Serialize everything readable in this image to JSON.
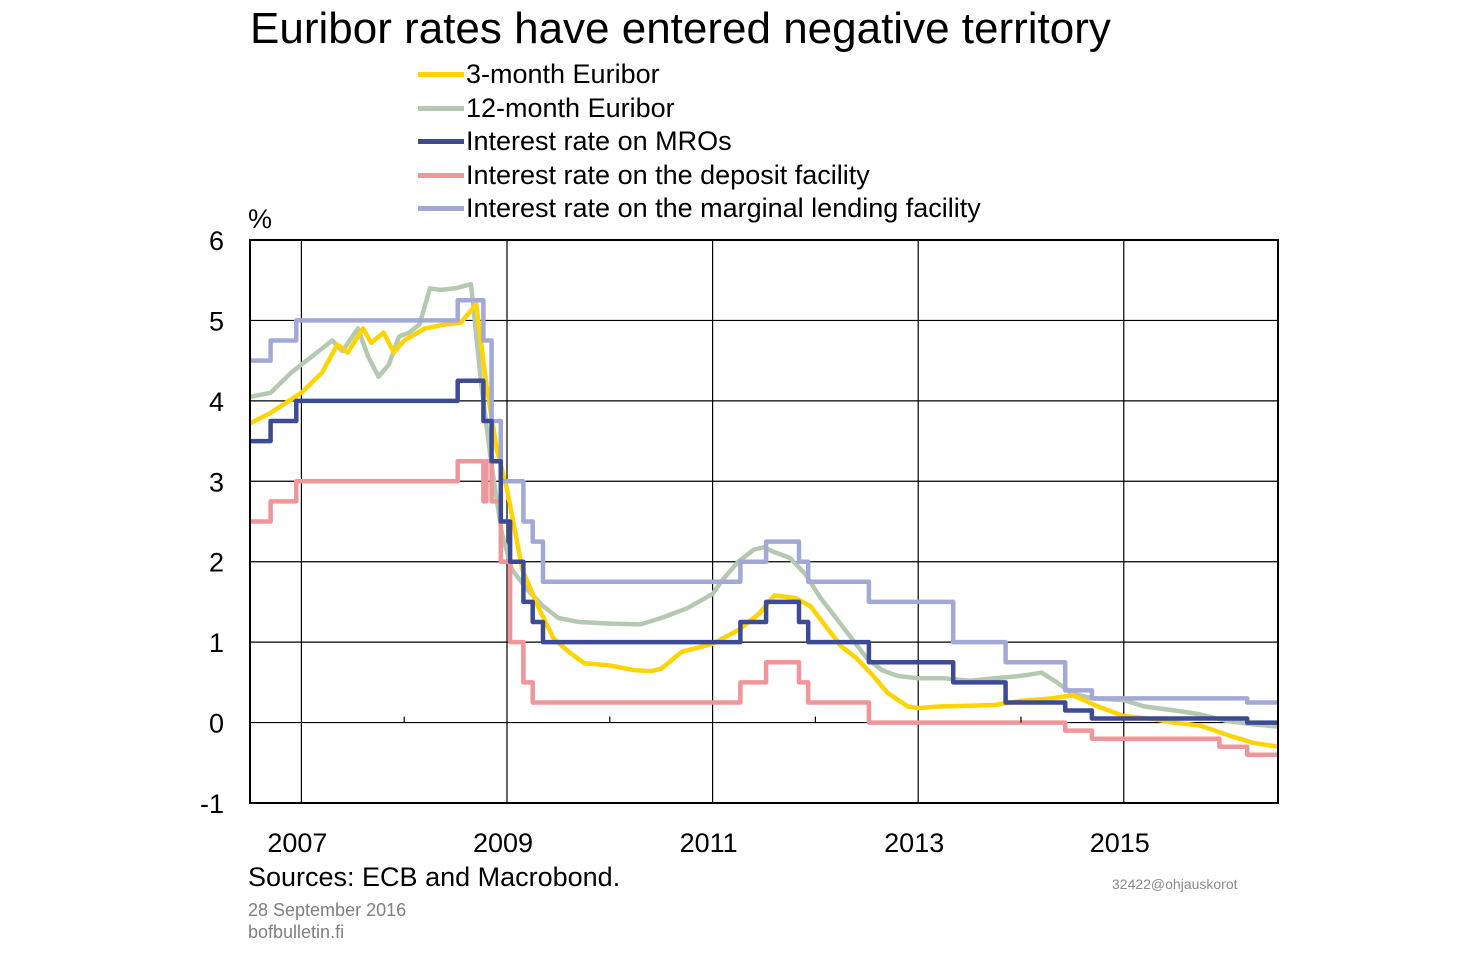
{
  "chart_data": {
    "type": "line",
    "title": "Euribor rates have entered negative territory",
    "ylabel": "%",
    "ylim": [
      -1,
      6
    ],
    "yticks": [
      "6",
      "5",
      "4",
      "3",
      "2",
      "1",
      "0",
      "-1"
    ],
    "xlim": [
      2006.5,
      2016.5
    ],
    "xticks": [
      "2007",
      "2009",
      "2011",
      "2013",
      "2015"
    ],
    "grid": true,
    "legend_position": "top",
    "series": [
      {
        "name": "3-month Euribor",
        "color": "#ffd400",
        "step": false,
        "x": [
          2006.5,
          2006.7,
          2007.0,
          2007.2,
          2007.35,
          2007.45,
          2007.6,
          2007.68,
          2007.8,
          2007.9,
          2008.0,
          2008.2,
          2008.4,
          2008.55,
          2008.7,
          2008.8,
          2008.9,
          2009.0,
          2009.15,
          2009.3,
          2009.45,
          2009.6,
          2009.75,
          2010.0,
          2010.25,
          2010.4,
          2010.5,
          2010.7,
          2011.0,
          2011.25,
          2011.45,
          2011.6,
          2011.8,
          2011.95,
          2012.1,
          2012.25,
          2012.4,
          2012.55,
          2012.7,
          2012.9,
          2013.0,
          2013.2,
          2013.5,
          2013.75,
          2014.0,
          2014.3,
          2014.5,
          2014.75,
          2015.0,
          2015.25,
          2015.5,
          2015.75,
          2016.0,
          2016.25,
          2016.5
        ],
        "y": [
          3.72,
          3.85,
          4.1,
          4.35,
          4.7,
          4.6,
          4.9,
          4.72,
          4.85,
          4.6,
          4.75,
          4.9,
          4.95,
          4.97,
          5.2,
          4.2,
          3.4,
          2.9,
          1.9,
          1.45,
          1.05,
          0.88,
          0.74,
          0.71,
          0.65,
          0.64,
          0.67,
          0.88,
          0.98,
          1.15,
          1.35,
          1.58,
          1.55,
          1.45,
          1.2,
          0.95,
          0.8,
          0.6,
          0.37,
          0.2,
          0.18,
          0.2,
          0.21,
          0.22,
          0.27,
          0.3,
          0.34,
          0.2,
          0.08,
          0.05,
          0.0,
          -0.04,
          -0.15,
          -0.25,
          -0.3
        ]
      },
      {
        "name": "12-month Euribor",
        "color": "#b5c9b0",
        "step": false,
        "x": [
          2006.5,
          2006.7,
          2006.9,
          2007.1,
          2007.3,
          2007.4,
          2007.55,
          2007.65,
          2007.75,
          2007.85,
          2007.95,
          2008.05,
          2008.15,
          2008.25,
          2008.35,
          2008.5,
          2008.65,
          2008.75,
          2008.85,
          2008.95,
          2009.05,
          2009.2,
          2009.35,
          2009.5,
          2009.7,
          2010.0,
          2010.3,
          2010.5,
          2010.75,
          2011.0,
          2011.1,
          2011.25,
          2011.4,
          2011.5,
          2011.6,
          2011.75,
          2011.9,
          2012.05,
          2012.2,
          2012.35,
          2012.5,
          2012.65,
          2012.8,
          2013.0,
          2013.25,
          2013.5,
          2013.75,
          2014.0,
          2014.2,
          2014.35,
          2014.5,
          2014.7,
          2015.0,
          2015.2,
          2015.5,
          2015.75,
          2016.0,
          2016.25,
          2016.5
        ],
        "y": [
          4.05,
          4.1,
          4.35,
          4.55,
          4.75,
          4.62,
          4.9,
          4.55,
          4.3,
          4.45,
          4.8,
          4.85,
          4.95,
          5.4,
          5.38,
          5.4,
          5.45,
          4.2,
          3.2,
          2.35,
          1.9,
          1.65,
          1.45,
          1.3,
          1.25,
          1.23,
          1.22,
          1.3,
          1.42,
          1.6,
          1.78,
          2.0,
          2.15,
          2.18,
          2.12,
          2.05,
          1.85,
          1.55,
          1.3,
          1.05,
          0.8,
          0.65,
          0.58,
          0.55,
          0.55,
          0.52,
          0.55,
          0.58,
          0.62,
          0.5,
          0.36,
          0.3,
          0.28,
          0.2,
          0.15,
          0.1,
          0.02,
          -0.02,
          -0.05
        ]
      },
      {
        "name": "Interest rate on MROs",
        "color": "#3d4b96",
        "step": true,
        "x": [
          2006.5,
          2006.7,
          2006.95,
          2007.44,
          2008.52,
          2008.77,
          2008.85,
          2008.94,
          2009.03,
          2009.16,
          2009.25,
          2009.35,
          2011.27,
          2011.52,
          2011.84,
          2011.93,
          2012.52,
          2013.34,
          2013.85,
          2014.43,
          2014.69,
          2016.2,
          2016.5
        ],
        "y": [
          3.5,
          3.75,
          4.0,
          4.0,
          4.25,
          3.75,
          3.25,
          2.5,
          2.0,
          1.5,
          1.25,
          1.0,
          1.25,
          1.5,
          1.25,
          1.0,
          0.75,
          0.5,
          0.25,
          0.15,
          0.05,
          0.0,
          0.0
        ]
      },
      {
        "name": "Interest rate on the deposit facility",
        "color": "#f0959a",
        "step": true,
        "x": [
          2006.5,
          2006.7,
          2006.95,
          2007.44,
          2008.52,
          2008.77,
          2008.8,
          2008.85,
          2008.94,
          2009.03,
          2009.16,
          2009.25,
          2009.35,
          2011.27,
          2011.52,
          2011.84,
          2011.93,
          2012.52,
          2014.43,
          2014.69,
          2015.93,
          2016.2,
          2016.5
        ],
        "y": [
          2.5,
          2.75,
          3.0,
          3.0,
          3.25,
          2.75,
          3.25,
          2.75,
          2.0,
          1.0,
          0.5,
          0.25,
          0.25,
          0.5,
          0.75,
          0.5,
          0.25,
          0.0,
          -0.1,
          -0.2,
          -0.3,
          -0.4,
          -0.4
        ]
      },
      {
        "name": "Interest rate on the marginal lending facility",
        "color": "#a3a9d6",
        "step": true,
        "x": [
          2006.5,
          2006.7,
          2006.95,
          2007.44,
          2008.52,
          2008.77,
          2008.85,
          2008.94,
          2009.03,
          2009.16,
          2009.25,
          2009.35,
          2011.27,
          2011.52,
          2011.84,
          2011.93,
          2012.52,
          2013.34,
          2013.85,
          2014.43,
          2014.69,
          2016.2,
          2016.5
        ],
        "y": [
          4.5,
          4.75,
          5.0,
          5.0,
          5.25,
          4.75,
          3.75,
          3.0,
          3.0,
          2.5,
          2.25,
          1.75,
          2.0,
          2.25,
          2.0,
          1.75,
          1.5,
          1.0,
          0.75,
          0.4,
          0.3,
          0.25,
          0.25
        ]
      }
    ]
  },
  "footer": {
    "sources": "Sources: ECB and Macrobond.",
    "chart_id": "32422@ohjauskorot",
    "date": "28 September 2016",
    "site": "bofbulletin.fi"
  }
}
